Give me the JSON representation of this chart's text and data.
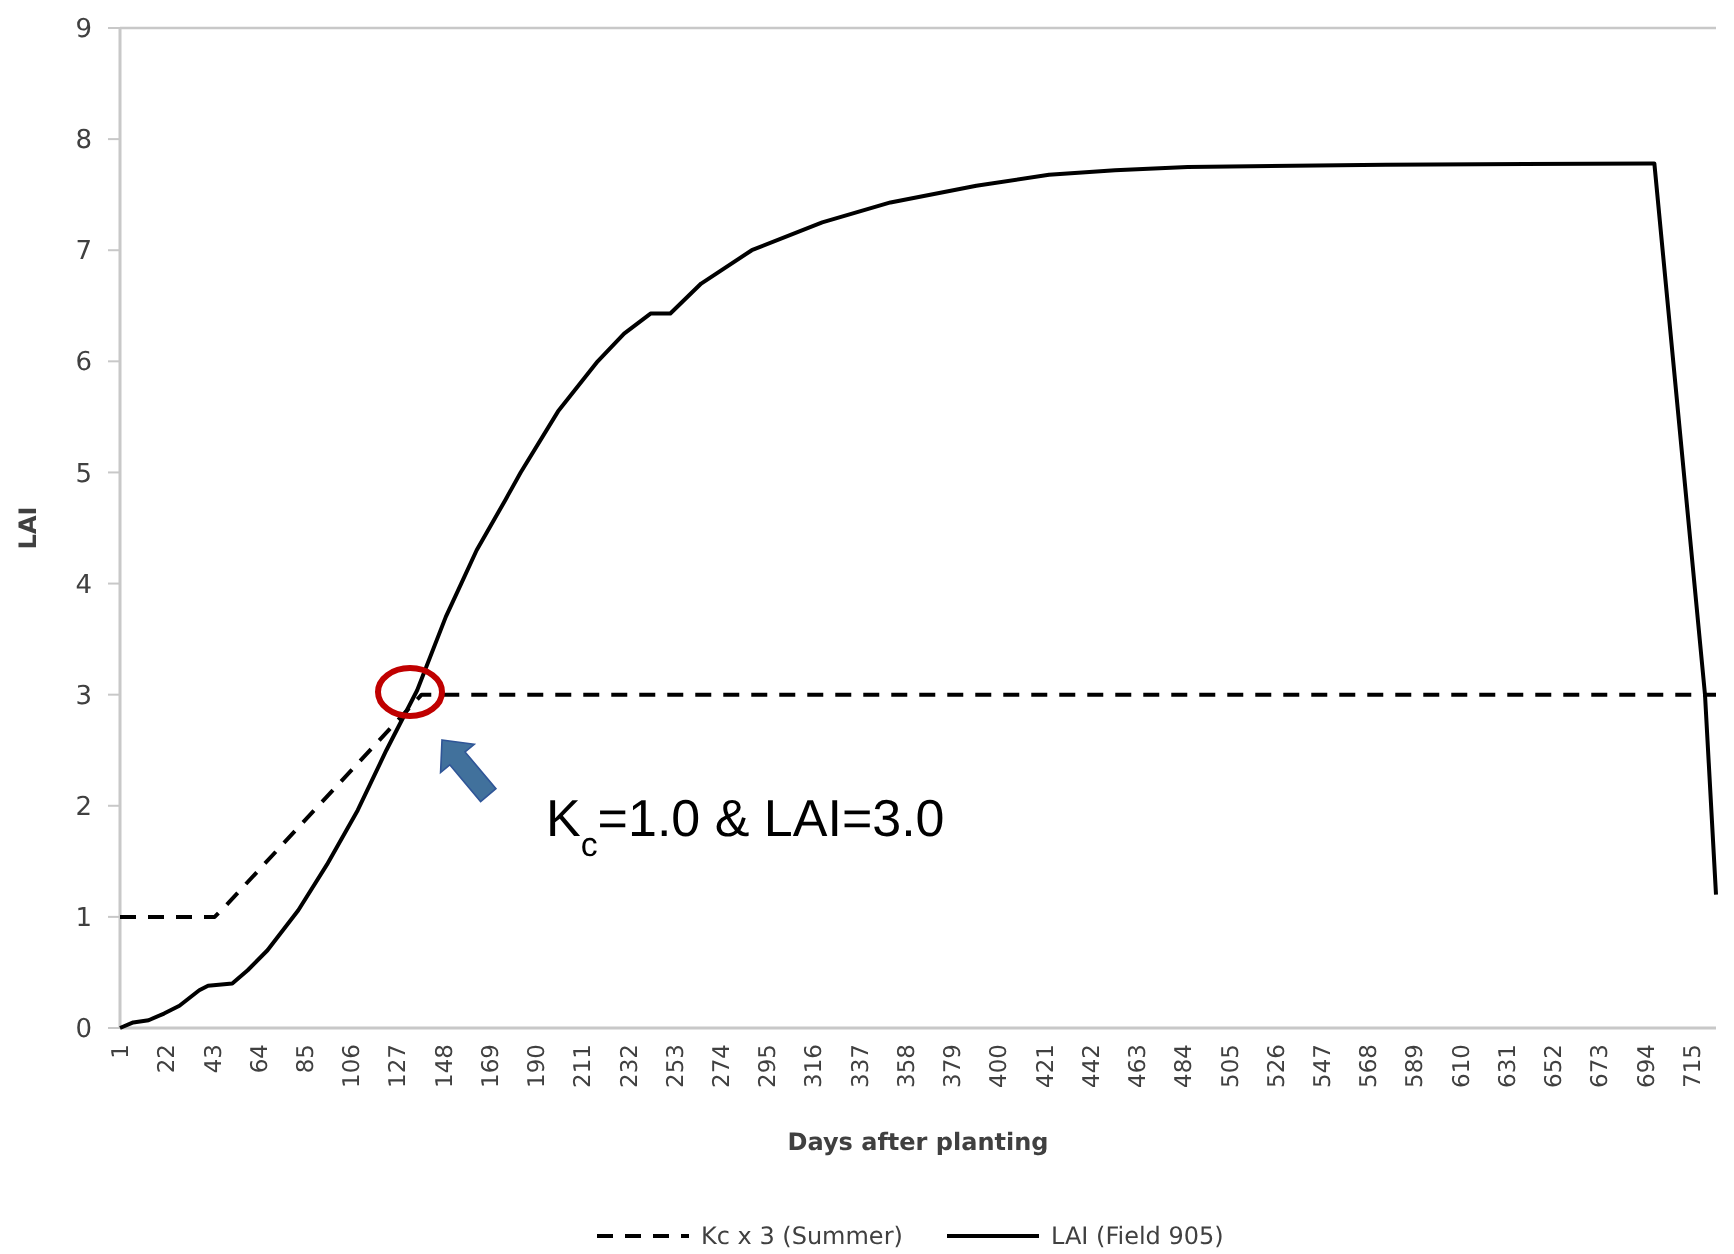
{
  "chart_data": {
    "type": "line",
    "xlabel": "Days after planting",
    "ylabel": "LAI",
    "xlim": [
      1,
      726
    ],
    "xticks": [
      1,
      22,
      43,
      64,
      85,
      106,
      127,
      148,
      169,
      190,
      211,
      232,
      253,
      274,
      295,
      316,
      337,
      358,
      379,
      400,
      421,
      442,
      463,
      484,
      505,
      526,
      547,
      568,
      589,
      610,
      631,
      652,
      673,
      694,
      715
    ],
    "ylim": [
      0,
      9
    ],
    "yticks": [
      0,
      1,
      2,
      3,
      4,
      5,
      6,
      7,
      8,
      9
    ],
    "grid": false,
    "legend": "bottom",
    "marker": "none",
    "series": [
      {
        "name": "Kc x 3 (Summer)",
        "color": "#000000",
        "line_style": "dashed",
        "x": [
          1,
          44,
          49,
          138,
          726
        ],
        "values": [
          1,
          1,
          1.1,
          3,
          3
        ]
      },
      {
        "name": "LAI (Field 905)",
        "color": "#000000",
        "line_style": "solid",
        "x": [
          1,
          7,
          14,
          21,
          28,
          37,
          41,
          52,
          59,
          68,
          82,
          95,
          109,
          122,
          136,
          149,
          156,
          163,
          176,
          183,
          200,
          218,
          230,
          242,
          251,
          265,
          288,
          320,
          351,
          390,
          423,
          453,
          486,
          576,
          697,
          698,
          721,
          726
        ],
        "values": [
          0,
          0.05,
          0.07,
          0.13,
          0.2,
          0.34,
          0.38,
          0.4,
          0.52,
          0.7,
          1.06,
          1.47,
          1.96,
          2.5,
          3.04,
          3.7,
          4.0,
          4.3,
          4.75,
          5.0,
          5.55,
          6.0,
          6.25,
          6.43,
          6.43,
          6.7,
          7.0,
          7.25,
          7.43,
          7.58,
          7.68,
          7.72,
          7.75,
          7.77,
          7.78,
          7.78,
          3.0,
          1.2
        ]
      }
    ],
    "annotations": [
      "K$_{c}$=1.0 & LAI=3.0"
    ]
  }
}
